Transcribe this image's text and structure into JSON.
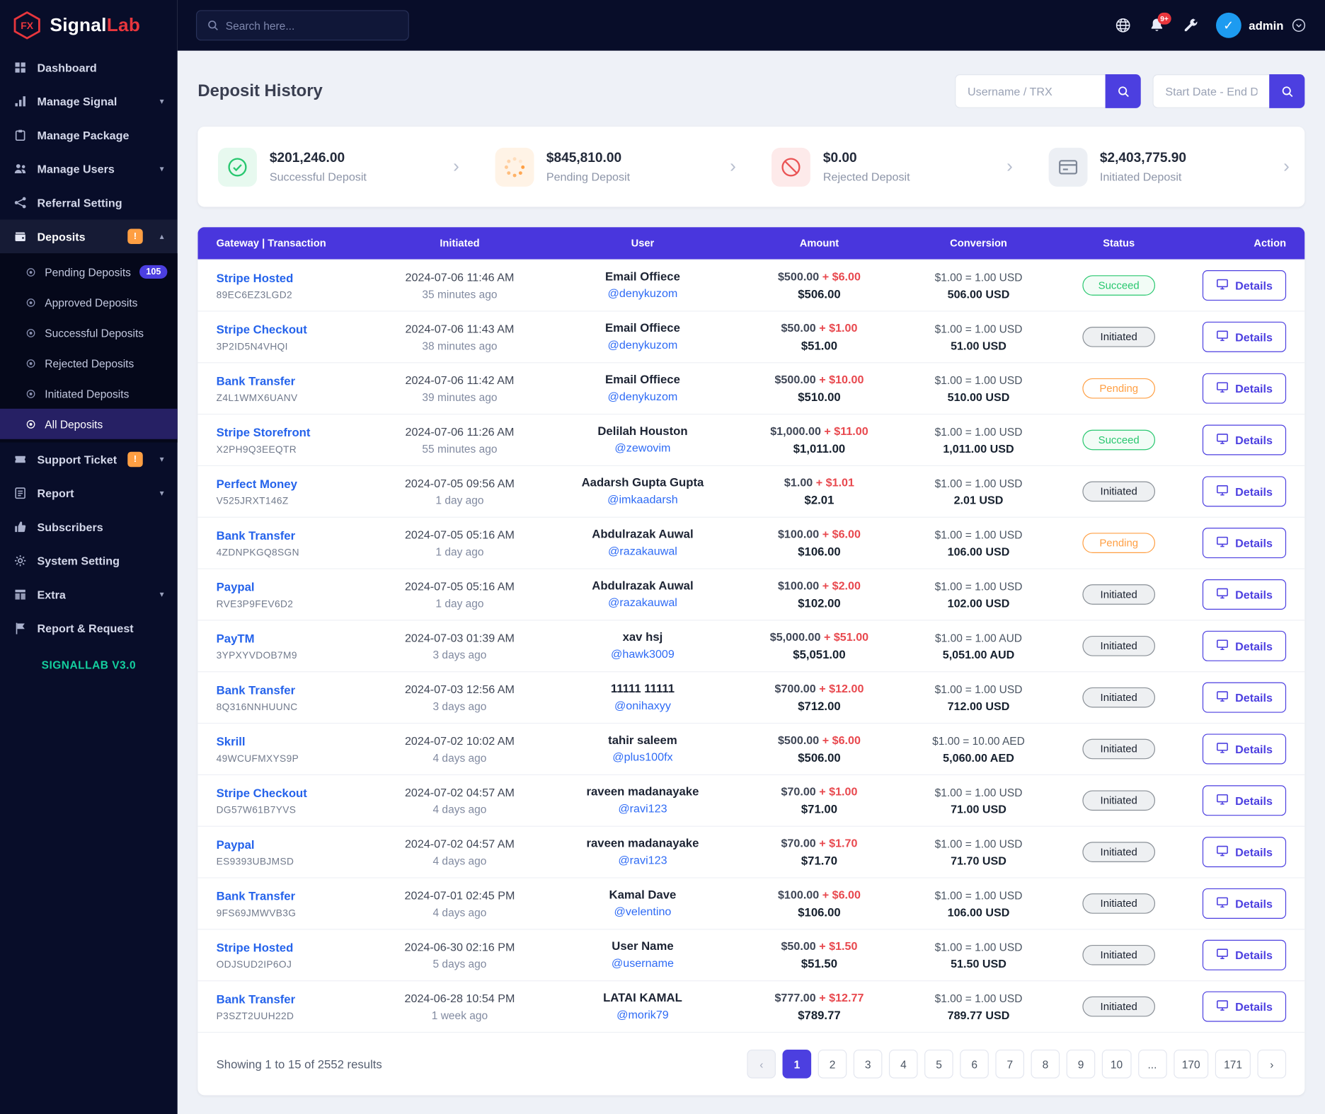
{
  "brand": {
    "name_primary": "Signal",
    "name_secondary": "Lab",
    "logo_text": "FX"
  },
  "topbar": {
    "search_placeholder": "Search here...",
    "notification_badge": "9+",
    "username": "admin"
  },
  "sidebar": {
    "version_label": "SIGNALLAB V3.0",
    "items": [
      {
        "label": "Dashboard",
        "icon": "dashboard-icon"
      },
      {
        "label": "Manage Signal",
        "icon": "signal-icon",
        "chevron": "down"
      },
      {
        "label": "Manage Package",
        "icon": "package-icon"
      },
      {
        "label": "Manage Users",
        "icon": "users-icon",
        "chevron": "down"
      },
      {
        "label": "Referral Setting",
        "icon": "referral-icon"
      },
      {
        "label": "Deposits",
        "icon": "deposits-icon",
        "badge": "!",
        "chevron": "up",
        "active": true,
        "submenu": [
          {
            "label": "Pending Deposits",
            "badge": "105"
          },
          {
            "label": "Approved Deposits"
          },
          {
            "label": "Successful Deposits"
          },
          {
            "label": "Rejected Deposits"
          },
          {
            "label": "Initiated Deposits"
          },
          {
            "label": "All Deposits",
            "active": true
          }
        ]
      },
      {
        "label": "Support Ticket",
        "icon": "ticket-icon",
        "badge": "!",
        "chevron": "down"
      },
      {
        "label": "Report",
        "icon": "report-icon",
        "chevron": "down"
      },
      {
        "label": "Subscribers",
        "icon": "subscribers-icon"
      },
      {
        "label": "System Setting",
        "icon": "settings-icon"
      },
      {
        "label": "Extra",
        "icon": "extra-icon",
        "chevron": "down"
      },
      {
        "label": "Report & Request",
        "icon": "request-icon"
      }
    ]
  },
  "page": {
    "title": "Deposit History",
    "filters": {
      "username_placeholder": "Username / TRX",
      "date_placeholder": "Start Date - End Date"
    },
    "stats": [
      {
        "amount": "$201,246.00",
        "label": "Successful Deposit",
        "icon": "check-circle-icon",
        "accent": "#28c76f",
        "tint": "#e7f9ef"
      },
      {
        "amount": "$845,810.00",
        "label": "Pending Deposit",
        "icon": "spinner-icon",
        "accent": "#ff9f43",
        "tint": "#fff3e6"
      },
      {
        "amount": "$0.00",
        "label": "Rejected Deposit",
        "icon": "ban-icon",
        "accent": "#ea5455",
        "tint": "#fdeaea"
      },
      {
        "amount": "$2,403,775.90",
        "label": "Initiated Deposit",
        "icon": "card-icon",
        "accent": "#7d8696",
        "tint": "#eceff4"
      }
    ],
    "table": {
      "headers": [
        "Gateway | Transaction",
        "Initiated",
        "User",
        "Amount",
        "Conversion",
        "Status",
        "Action"
      ],
      "details_label": "Details",
      "rows": [
        {
          "gateway": "Stripe Hosted",
          "trx": "89EC6EZ3LGD2",
          "date": "2024-07-06 11:46 AM",
          "ago": "35 minutes ago",
          "name": "Email Offiece",
          "handle": "@denykuzom",
          "base": "$500.00",
          "fee": "+ $6.00",
          "total": "$506.00",
          "rate": "$1.00 = 1.00 USD",
          "converted": "506.00 USD",
          "status": "Succeed"
        },
        {
          "gateway": "Stripe Checkout",
          "trx": "3P2ID5N4VHQI",
          "date": "2024-07-06 11:43 AM",
          "ago": "38 minutes ago",
          "name": "Email Offiece",
          "handle": "@denykuzom",
          "base": "$50.00",
          "fee": "+ $1.00",
          "total": "$51.00",
          "rate": "$1.00 = 1.00 USD",
          "converted": "51.00 USD",
          "status": "Initiated"
        },
        {
          "gateway": "Bank Transfer",
          "trx": "Z4L1WMX6UANV",
          "date": "2024-07-06 11:42 AM",
          "ago": "39 minutes ago",
          "name": "Email Offiece",
          "handle": "@denykuzom",
          "base": "$500.00",
          "fee": "+ $10.00",
          "total": "$510.00",
          "rate": "$1.00 = 1.00 USD",
          "converted": "510.00 USD",
          "status": "Pending"
        },
        {
          "gateway": "Stripe Storefront",
          "trx": "X2PH9Q3EEQTR",
          "date": "2024-07-06 11:26 AM",
          "ago": "55 minutes ago",
          "name": "Delilah Houston",
          "handle": "@zewovim",
          "base": "$1,000.00",
          "fee": "+ $11.00",
          "total": "$1,011.00",
          "rate": "$1.00 = 1.00 USD",
          "converted": "1,011.00 USD",
          "status": "Succeed"
        },
        {
          "gateway": "Perfect Money",
          "trx": "V525JRXT146Z",
          "date": "2024-07-05 09:56 AM",
          "ago": "1 day ago",
          "name": "Aadarsh Gupta Gupta",
          "handle": "@imkaadarsh",
          "base": "$1.00",
          "fee": "+ $1.01",
          "total": "$2.01",
          "rate": "$1.00 = 1.00 USD",
          "converted": "2.01 USD",
          "status": "Initiated"
        },
        {
          "gateway": "Bank Transfer",
          "trx": "4ZDNPKGQ8SGN",
          "date": "2024-07-05 05:16 AM",
          "ago": "1 day ago",
          "name": "Abdulrazak Auwal",
          "handle": "@razakauwal",
          "base": "$100.00",
          "fee": "+ $6.00",
          "total": "$106.00",
          "rate": "$1.00 = 1.00 USD",
          "converted": "106.00 USD",
          "status": "Pending"
        },
        {
          "gateway": "Paypal",
          "trx": "RVE3P9FEV6D2",
          "date": "2024-07-05 05:16 AM",
          "ago": "1 day ago",
          "name": "Abdulrazak Auwal",
          "handle": "@razakauwal",
          "base": "$100.00",
          "fee": "+ $2.00",
          "total": "$102.00",
          "rate": "$1.00 = 1.00 USD",
          "converted": "102.00 USD",
          "status": "Initiated"
        },
        {
          "gateway": "PayTM",
          "trx": "3YPXYVDOB7M9",
          "date": "2024-07-03 01:39 AM",
          "ago": "3 days ago",
          "name": "xav hsj",
          "handle": "@hawk3009",
          "base": "$5,000.00",
          "fee": "+ $51.00",
          "total": "$5,051.00",
          "rate": "$1.00 = 1.00 AUD",
          "converted": "5,051.00 AUD",
          "status": "Initiated"
        },
        {
          "gateway": "Bank Transfer",
          "trx": "8Q316NNHUUNC",
          "date": "2024-07-03 12:56 AM",
          "ago": "3 days ago",
          "name": "11111 11111",
          "handle": "@onihaxyy",
          "base": "$700.00",
          "fee": "+ $12.00",
          "total": "$712.00",
          "rate": "$1.00 = 1.00 USD",
          "converted": "712.00 USD",
          "status": "Initiated"
        },
        {
          "gateway": "Skrill",
          "trx": "49WCUFMXYS9P",
          "date": "2024-07-02 10:02 AM",
          "ago": "4 days ago",
          "name": "tahir saleem",
          "handle": "@plus100fx",
          "base": "$500.00",
          "fee": "+ $6.00",
          "total": "$506.00",
          "rate": "$1.00 = 10.00 AED",
          "converted": "5,060.00 AED",
          "status": "Initiated"
        },
        {
          "gateway": "Stripe Checkout",
          "trx": "DG57W61B7YVS",
          "date": "2024-07-02 04:57 AM",
          "ago": "4 days ago",
          "name": "raveen madanayake",
          "handle": "@ravi123",
          "base": "$70.00",
          "fee": "+ $1.00",
          "total": "$71.00",
          "rate": "$1.00 = 1.00 USD",
          "converted": "71.00 USD",
          "status": "Initiated"
        },
        {
          "gateway": "Paypal",
          "trx": "ES9393UBJMSD",
          "date": "2024-07-02 04:57 AM",
          "ago": "4 days ago",
          "name": "raveen madanayake",
          "handle": "@ravi123",
          "base": "$70.00",
          "fee": "+ $1.70",
          "total": "$71.70",
          "rate": "$1.00 = 1.00 USD",
          "converted": "71.70 USD",
          "status": "Initiated"
        },
        {
          "gateway": "Bank Transfer",
          "trx": "9FS69JMWVB3G",
          "date": "2024-07-01 02:45 PM",
          "ago": "4 days ago",
          "name": "Kamal Dave",
          "handle": "@velentino",
          "base": "$100.00",
          "fee": "+ $6.00",
          "total": "$106.00",
          "rate": "$1.00 = 1.00 USD",
          "converted": "106.00 USD",
          "status": "Initiated"
        },
        {
          "gateway": "Stripe Hosted",
          "trx": "ODJSUD2IP6OJ",
          "date": "2024-06-30 02:16 PM",
          "ago": "5 days ago",
          "name": "User Name",
          "handle": "@username",
          "base": "$50.00",
          "fee": "+ $1.50",
          "total": "$51.50",
          "rate": "$1.00 = 1.00 USD",
          "converted": "51.50 USD",
          "status": "Initiated"
        },
        {
          "gateway": "Bank Transfer",
          "trx": "P3SZT2UUH22D",
          "date": "2024-06-28 10:54 PM",
          "ago": "1 week ago",
          "name": "LATAI KAMAL",
          "handle": "@morik79",
          "base": "$777.00",
          "fee": "+ $12.77",
          "total": "$789.77",
          "rate": "$1.00 = 1.00 USD",
          "converted": "789.77 USD",
          "status": "Initiated"
        }
      ]
    },
    "footer": {
      "summary": "Showing 1 to 15 of 2552 results",
      "pagination": {
        "items": [
          "‹",
          "1",
          "2",
          "3",
          "4",
          "5",
          "6",
          "7",
          "8",
          "9",
          "10",
          "...",
          "170",
          "171",
          "›"
        ],
        "active": "1"
      }
    }
  }
}
